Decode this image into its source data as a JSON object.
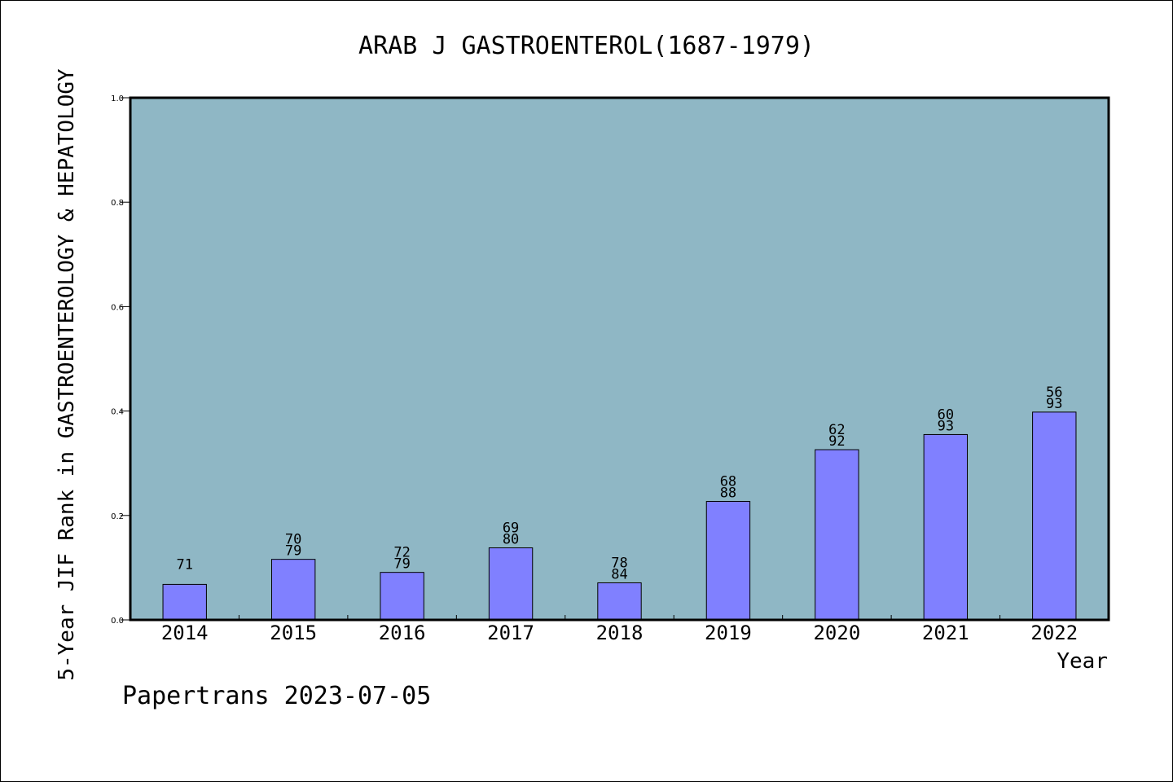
{
  "chart_data": {
    "type": "bar",
    "title": "ARAB J GASTROENTEROL(1687-1979)",
    "xlabel": "Year",
    "ylabel": "5-Year JIF Rank in GASTROENTEROLOGY & HEPATOLOGY",
    "ylim": [
      0,
      1.0
    ],
    "yticks": [
      "0.0",
      "0.2",
      "0.4",
      "0.6",
      "0.8",
      "1.0"
    ],
    "categories": [
      "2014",
      "2015",
      "2016",
      "2017",
      "2018",
      "2019",
      "2020",
      "2021",
      "2022"
    ],
    "values": [
      0.068,
      0.116,
      0.091,
      0.138,
      0.071,
      0.227,
      0.326,
      0.355,
      0.398
    ],
    "labels": [
      [
        "71"
      ],
      [
        "70",
        "79"
      ],
      [
        "72",
        "79"
      ],
      [
        "69",
        "80"
      ],
      [
        "78",
        "84"
      ],
      [
        "68",
        "88"
      ],
      [
        "62",
        "92"
      ],
      [
        "60",
        "93"
      ],
      [
        "56",
        "93"
      ]
    ],
    "grid": false,
    "legend": "none",
    "colors": {
      "plot_bg": "#8fb7c5",
      "bar_fill": "#8080ff",
      "bar_stroke": "#000000",
      "frame": "#000000"
    }
  },
  "footer": {
    "text": "Papertrans 2023-07-05"
  }
}
